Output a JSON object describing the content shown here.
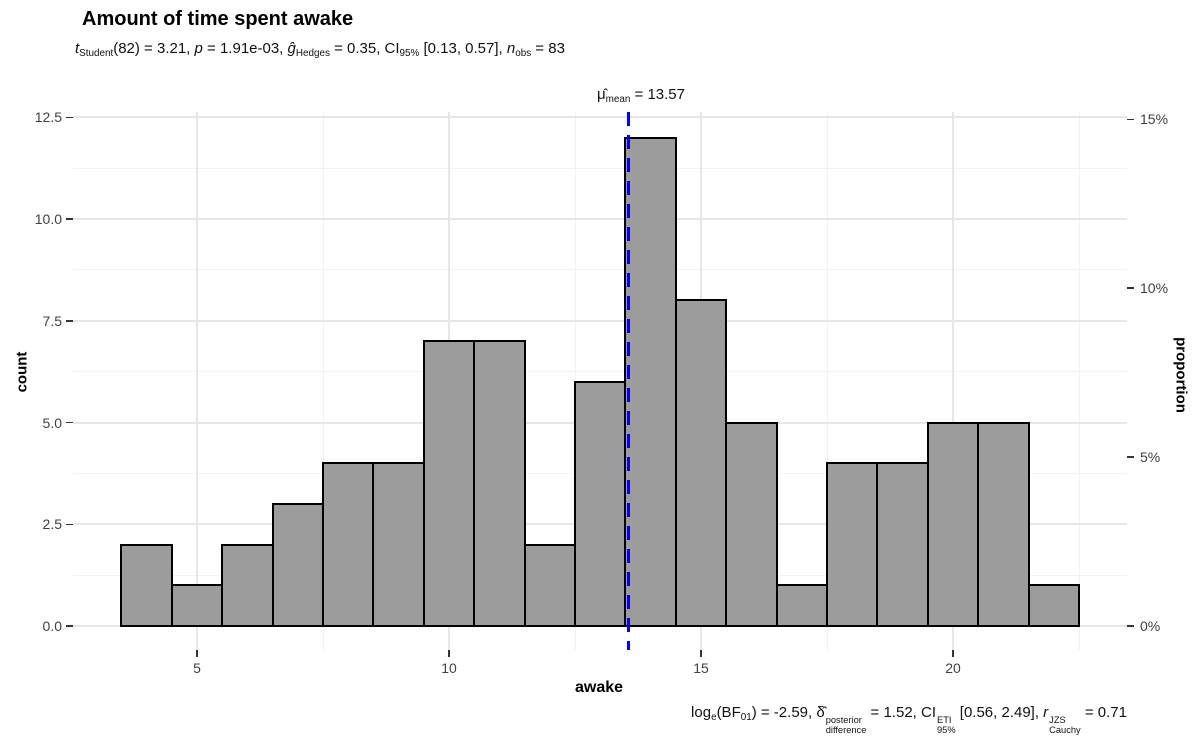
{
  "title": "Amount of time spent awake",
  "subtitle": {
    "segments": [
      {
        "text": "t",
        "style": "italic"
      },
      {
        "text": "Student",
        "style": "sub"
      },
      {
        "text": "(82) = 3.21, ",
        "style": "plain"
      },
      {
        "text": "p",
        "style": "italic"
      },
      {
        "text": " = 1.91e-03, ",
        "style": "plain"
      },
      {
        "text": "ĝ",
        "style": "italic"
      },
      {
        "text": "Hedges",
        "style": "sub"
      },
      {
        "text": " = 0.35, CI",
        "style": "plain"
      },
      {
        "text": "95%",
        "style": "sub"
      },
      {
        "text": " [0.13, 0.57], ",
        "style": "plain"
      },
      {
        "text": "n",
        "style": "italic"
      },
      {
        "text": "obs",
        "style": "sub"
      },
      {
        "text": " = 83",
        "style": "plain"
      }
    ]
  },
  "mean_label": {
    "segments": [
      {
        "text": "μ̂",
        "style": "plain"
      },
      {
        "text": "mean",
        "style": "sub"
      },
      {
        "text": " = 13.57",
        "style": "plain"
      }
    ]
  },
  "caption": {
    "segments": [
      {
        "text": "log",
        "style": "plain"
      },
      {
        "text": "e",
        "style": "sub"
      },
      {
        "text": "(BF",
        "style": "plain"
      },
      {
        "text": "01",
        "style": "sub"
      },
      {
        "text": ") = -2.59, ",
        "style": "plain"
      },
      {
        "text": "δ̂",
        "style": "plain"
      },
      {
        "sup": "posterior",
        "sub": "difference"
      },
      {
        "text": " = 1.52, CI",
        "style": "plain"
      },
      {
        "sup": "ETI",
        "sub": "95%"
      },
      {
        "text": " [0.56, 2.49], ",
        "style": "plain"
      },
      {
        "text": "r",
        "style": "italic"
      },
      {
        "sup": "JZS",
        "sub": "Cauchy"
      },
      {
        "text": " = 0.71",
        "style": "plain"
      }
    ]
  },
  "chart_data": {
    "type": "bar",
    "subtype": "histogram",
    "title": "Amount of time spent awake",
    "xlabel": "awake",
    "ylabel": "count",
    "ylabel_right": "proportion",
    "n_obs": 83,
    "mean": 13.57,
    "bin_width": 1,
    "bin_start": 3.5,
    "bin_centers": [
      4,
      5,
      6,
      7,
      8,
      9,
      10,
      11,
      12,
      13,
      14,
      15,
      16,
      17,
      18,
      19,
      20,
      21,
      22
    ],
    "counts": [
      2,
      1,
      2,
      3,
      4,
      4,
      7,
      7,
      2,
      6,
      12,
      8,
      5,
      1,
      4,
      4,
      5,
      5,
      1
    ],
    "xlim": [
      2.55,
      23.45
    ],
    "ylim": [
      0,
      12.6
    ],
    "grid": true,
    "legend_position": "none",
    "x_ticks": [
      {
        "v": 5,
        "label": "5"
      },
      {
        "v": 10,
        "label": "10"
      },
      {
        "v": 15,
        "label": "15"
      },
      {
        "v": 20,
        "label": "20"
      }
    ],
    "x_minor": [
      7.5,
      12.5,
      17.5,
      22.5
    ],
    "y_ticks_left": [
      {
        "v": 0,
        "label": "0.0"
      },
      {
        "v": 2.5,
        "label": "2.5"
      },
      {
        "v": 5,
        "label": "5.0"
      },
      {
        "v": 7.5,
        "label": "7.5"
      },
      {
        "v": 10,
        "label": "10.0"
      },
      {
        "v": 12.5,
        "label": "12.5"
      }
    ],
    "y_minor": [
      1.25,
      3.75,
      6.25,
      8.75,
      11.25
    ],
    "y_ticks_right": [
      {
        "pct": 0,
        "label": "0%"
      },
      {
        "pct": 5,
        "label": "5%"
      },
      {
        "pct": 10,
        "label": "10%"
      },
      {
        "pct": 15,
        "label": "15%"
      }
    ],
    "colors": {
      "bar_fill": "#9c9c9c",
      "bar_stroke": "#000000",
      "mean_line": "#0000fa",
      "grid_major": "#e6e6e6",
      "grid_minor": "#f2f2f2",
      "axis_text": "#404040",
      "text": "#111111"
    }
  }
}
